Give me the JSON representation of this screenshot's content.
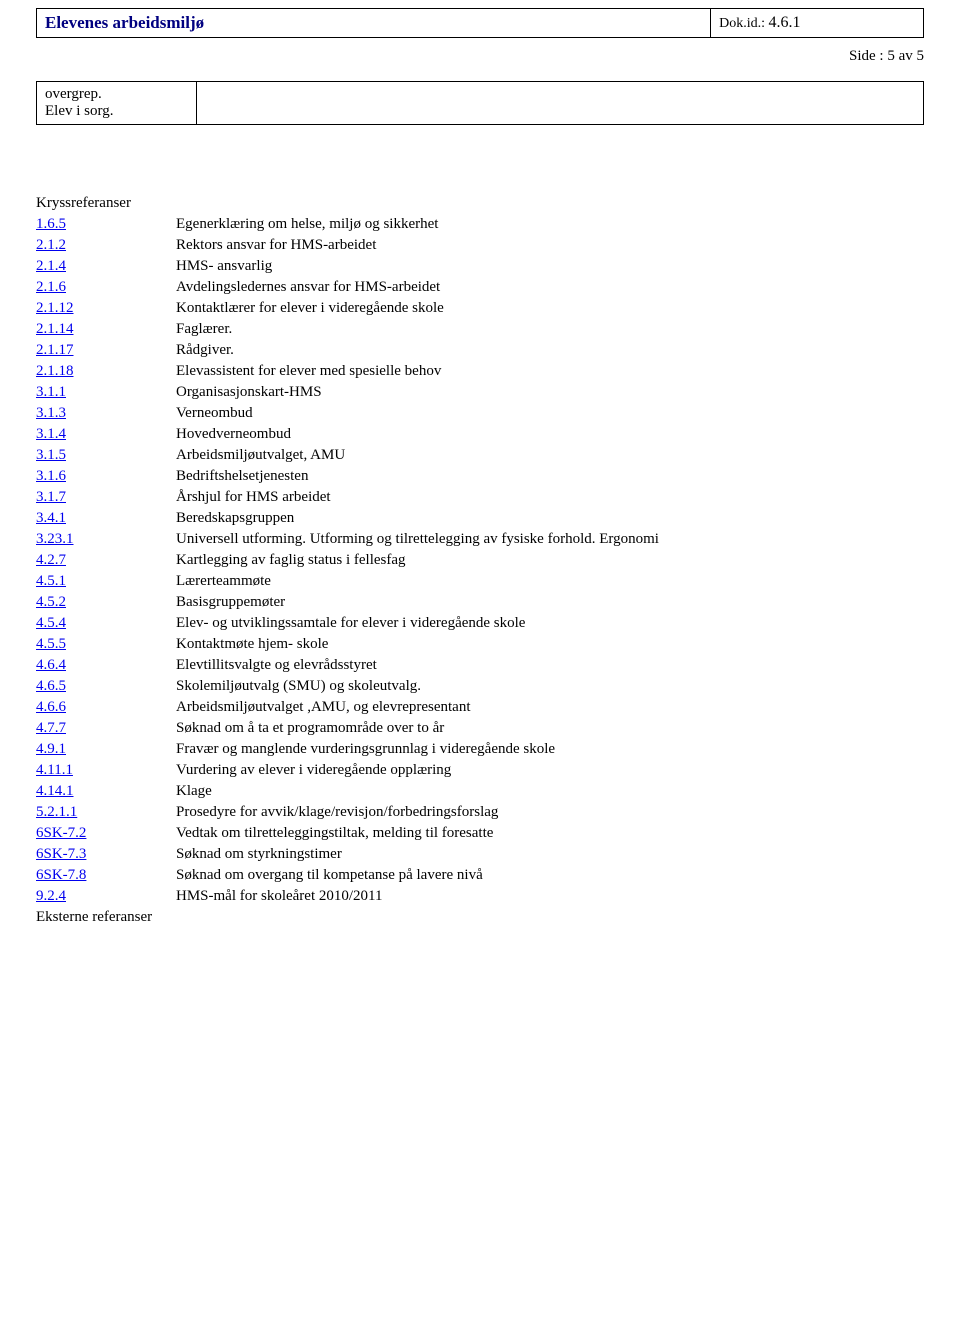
{
  "header": {
    "title": "Elevenes arbeidsmiljø",
    "docid_label": "Dok.id.: ",
    "docid_value": "4.6.1"
  },
  "page_side": "Side   : 5 av 5",
  "note_box": {
    "left_lines": [
      "overgrep.",
      "Elev i sorg."
    ]
  },
  "cross_ref_heading": "Kryssreferanser",
  "refs": [
    {
      "num": "1.6.5",
      "desc": "Egenerklæring om helse, miljø og sikkerhet"
    },
    {
      "num": "2.1.2",
      "desc": "Rektors ansvar for HMS-arbeidet"
    },
    {
      "num": "2.1.4",
      "desc": "HMS- ansvarlig"
    },
    {
      "num": "2.1.6",
      "desc": "Avdelingsledernes ansvar for HMS-arbeidet"
    },
    {
      "num": "2.1.12",
      "desc": "Kontaktlærer for elever i videregående skole"
    },
    {
      "num": "2.1.14",
      "desc": "Faglærer."
    },
    {
      "num": "2.1.17",
      "desc": "Rådgiver."
    },
    {
      "num": "2.1.18",
      "desc": "Elevassistent for elever med spesielle behov"
    },
    {
      "num": "3.1.1",
      "desc": "Organisasjonskart-HMS"
    },
    {
      "num": "3.1.3",
      "desc": "Verneombud"
    },
    {
      "num": "3.1.4",
      "desc": "Hovedverneombud"
    },
    {
      "num": "3.1.5",
      "desc": "Arbeidsmiljøutvalget, AMU"
    },
    {
      "num": "3.1.6",
      "desc": "Bedriftshelsetjenesten"
    },
    {
      "num": "3.1.7",
      "desc": "Årshjul for HMS arbeidet"
    },
    {
      "num": "3.4.1",
      "desc": "Beredskapsgruppen"
    },
    {
      "num": "3.23.1",
      "desc": "Universell utforming. Utforming og tilrettelegging av fysiske forhold. Ergonomi"
    },
    {
      "num": "4.2.7",
      "desc": "Kartlegging av faglig status i fellesfag"
    },
    {
      "num": "4.5.1",
      "desc": "Lærerteammøte"
    },
    {
      "num": "4.5.2",
      "desc": "Basisgruppemøter"
    },
    {
      "num": "4.5.4",
      "desc": "Elev- og utviklingssamtale for elever i videregående skole"
    },
    {
      "num": "4.5.5",
      "desc": "Kontaktmøte hjem- skole"
    },
    {
      "num": "4.6.4",
      "desc": "Elevtillitsvalgte og elevrådsstyret"
    },
    {
      "num": "4.6.5",
      "desc": "Skolemiljøutvalg (SMU) og skoleutvalg."
    },
    {
      "num": "4.6.6",
      "desc": "Arbeidsmiljøutvalget ,AMU, og elevrepresentant"
    },
    {
      "num": "4.7.7",
      "desc": "Søknad om å ta et programområde over to år"
    },
    {
      "num": "4.9.1",
      "desc": "Fravær og manglende vurderingsgrunnlag i videregående skole"
    },
    {
      "num": "4.11.1",
      "desc": "Vurdering av elever i videregående opplæring"
    },
    {
      "num": "4.14.1",
      "desc": "Klage"
    },
    {
      "num": "5.2.1.1",
      "desc": "Prosedyre for avvik/klage/revisjon/forbedringsforslag"
    },
    {
      "num": "6SK-7.2",
      "desc": "Vedtak om tilretteleggingstiltak, melding til foresatte"
    },
    {
      "num": "6SK-7.3",
      "desc": "Søknad om styrkningstimer"
    },
    {
      "num": "6SK-7.8",
      "desc": "Søknad om overgang til kompetanse på lavere nivå"
    },
    {
      "num": "9.2.4",
      "desc": "HMS-mål for skoleåret 2010/2011"
    }
  ],
  "ext_ref_heading": "Eksterne referanser"
}
